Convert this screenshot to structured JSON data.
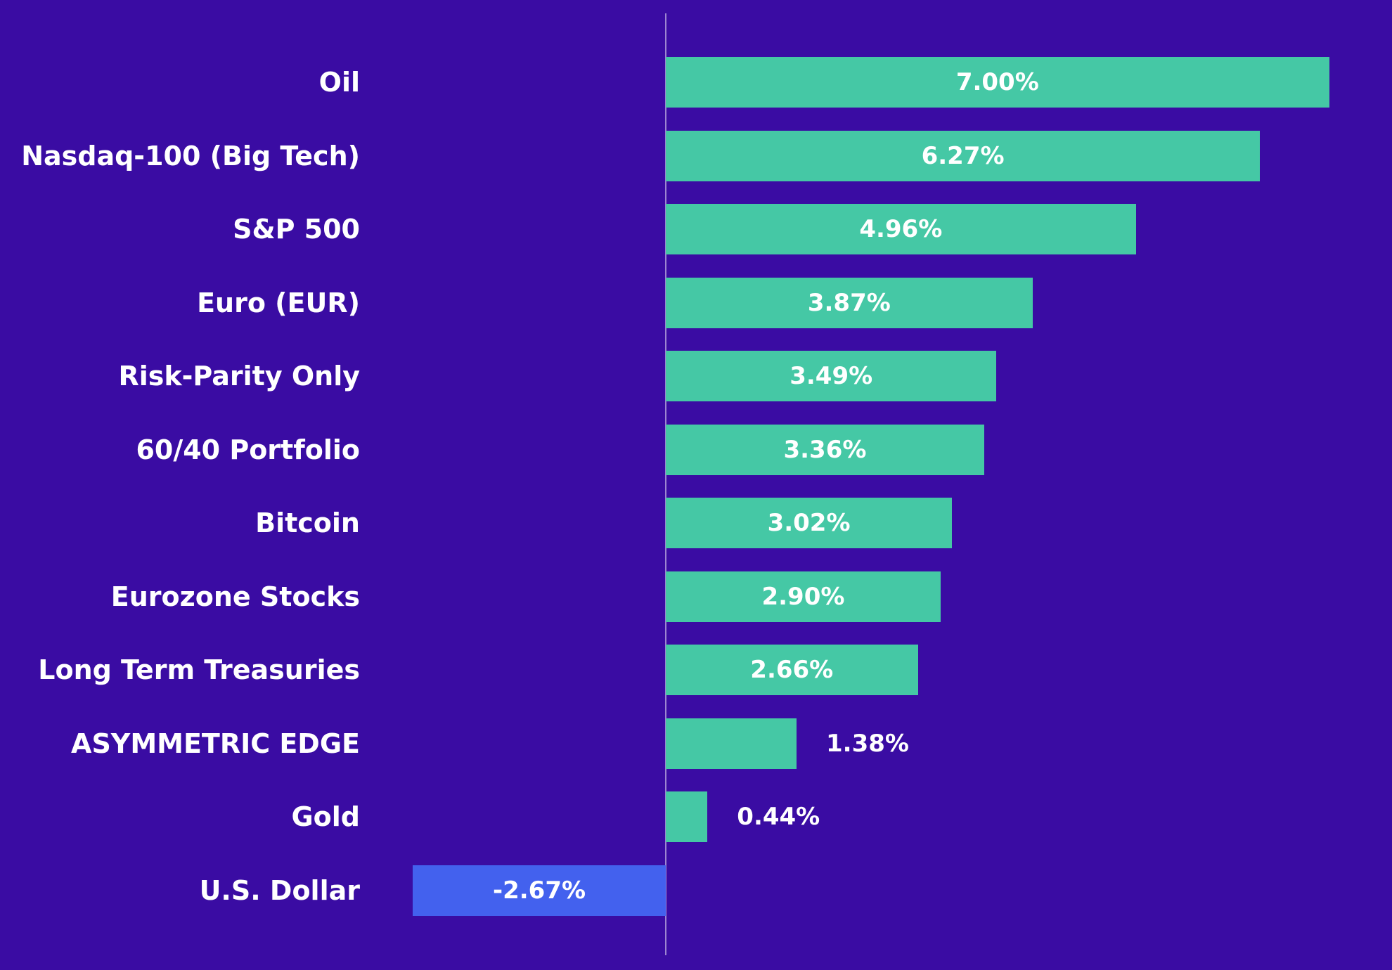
{
  "colors": {
    "background": "#3A0CA3",
    "positive_bar": "#45C8A5",
    "negative_bar": "#4361EE",
    "label_text": "#FFFFFF",
    "axis_line": "rgba(255,255,255,0.5)"
  },
  "chart_data": {
    "type": "bar",
    "orientation": "horizontal",
    "title": "",
    "xlabel": "",
    "ylabel": "",
    "categories": [
      "Oil",
      "Nasdaq-100 (Big Tech)",
      "S&P 500",
      "Euro (EUR)",
      "Risk-Parity Only",
      "60/40 Portfolio",
      "Bitcoin",
      "Eurozone Stocks",
      "Long Term Treasuries",
      "ASYMMETRIC EDGE",
      "Gold",
      "U.S. Dollar"
    ],
    "values": [
      7.0,
      6.27,
      4.96,
      3.87,
      3.49,
      3.36,
      3.02,
      2.9,
      2.66,
      1.38,
      0.44,
      -2.67
    ],
    "value_labels": [
      "7.00%",
      "6.27%",
      "4.96%",
      "3.87%",
      "3.49%",
      "3.36%",
      "3.02%",
      "2.90%",
      "2.66%",
      "1.38%",
      "0.44%",
      "-2.67%"
    ],
    "xlim": [
      -3.1,
      7.5
    ],
    "grid": false,
    "legend": null,
    "zero_axis_line": true,
    "bar_label_position_rule": "centered inside bar when bar is wide enough, otherwise outside right of bar"
  }
}
